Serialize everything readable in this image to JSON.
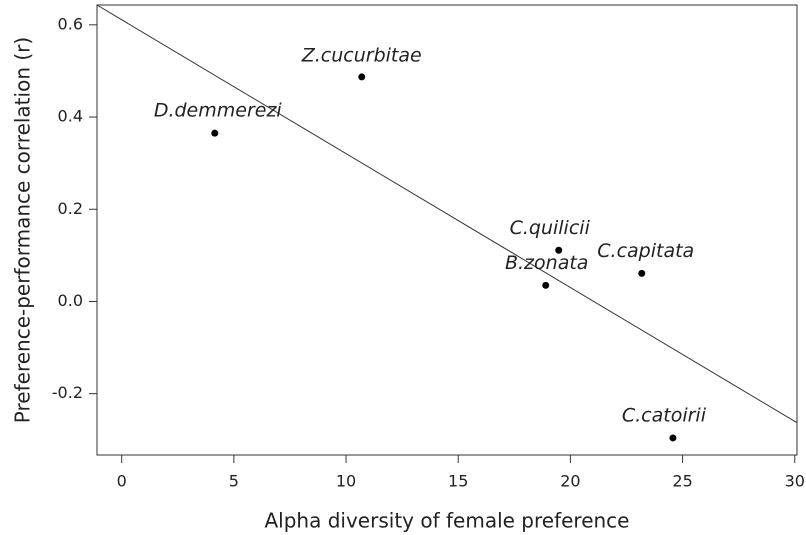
{
  "chart_data": {
    "type": "scatter",
    "xlabel": "Alpha diversity of female preference",
    "ylabel": "Preference-performance correlation (r)",
    "labels": [
      "D.demmerezi",
      "Z.cucurbitae",
      "C.quilicii",
      "B.zonata",
      "C.capitata",
      "C.catoirii"
    ],
    "x": [
      4.15,
      10.7,
      19.48,
      18.9,
      23.18,
      24.57
    ],
    "values": [
      0.365,
      0.487,
      0.111,
      0.035,
      0.061,
      -0.296
    ],
    "color": "#000000",
    "trend_line": {
      "x": [
        -1.1,
        30.1
      ],
      "y": [
        0.643,
        -0.263
      ]
    },
    "xlim": [
      -1.1,
      30.1
    ],
    "ylim": [
      -0.333,
      0.643
    ],
    "xticks": [
      0,
      5,
      10,
      15,
      20,
      25,
      30
    ],
    "yticks": [
      {
        "value": 0.6,
        "label": "0.6"
      },
      {
        "value": 0.4,
        "label": "0.4"
      },
      {
        "value": 0.2,
        "label": "0.2"
      },
      {
        "value": 0.0,
        "label": "0.0"
      },
      {
        "value": -0.2,
        "label": "-0.2"
      }
    ],
    "grid": false
  }
}
